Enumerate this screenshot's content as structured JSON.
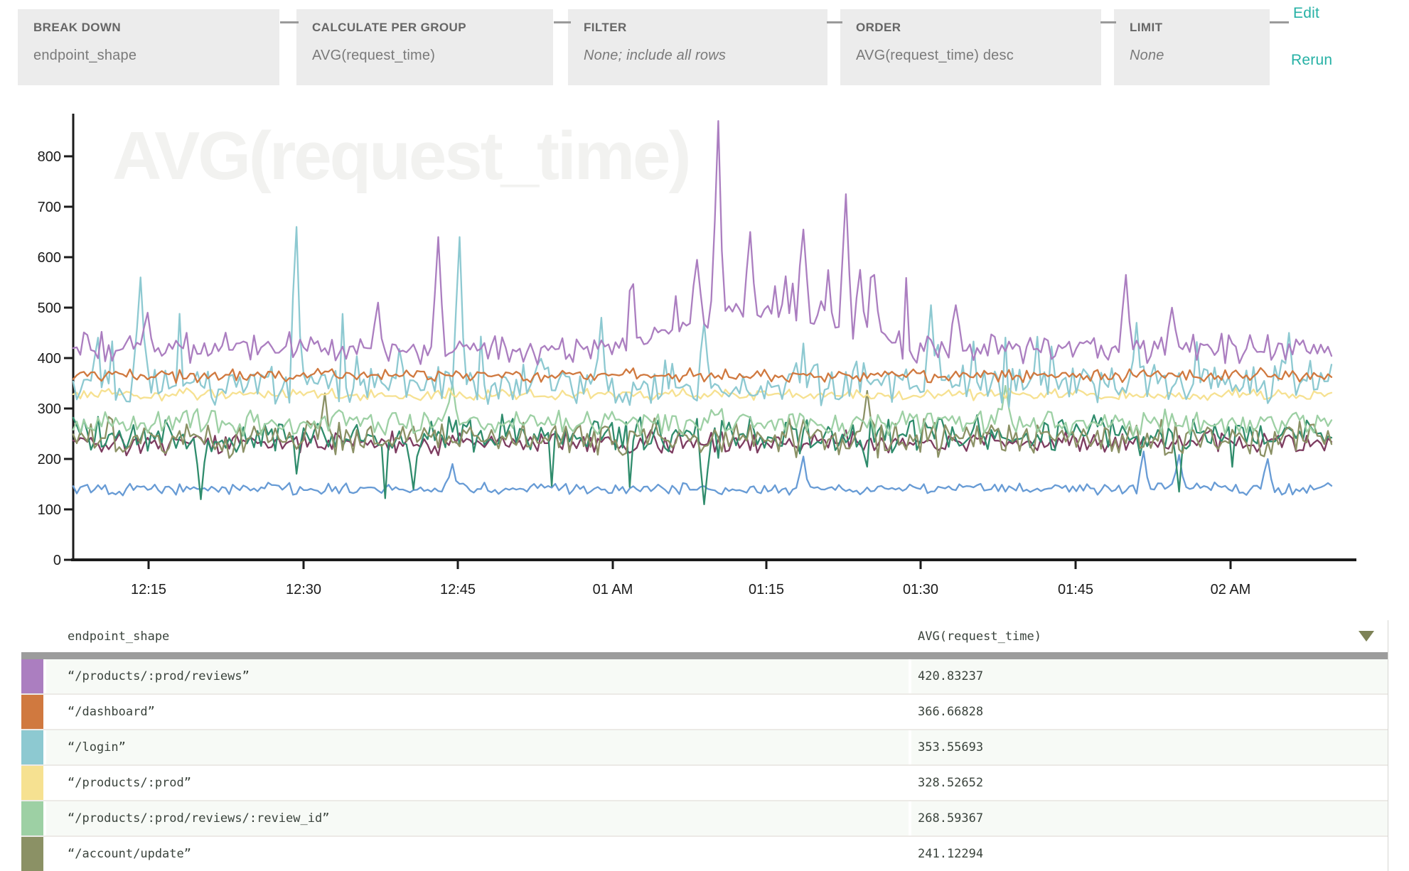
{
  "query_builder": {
    "clauses": [
      {
        "label": "BREAK DOWN",
        "value": "endpoint_shape"
      },
      {
        "label": "CALCULATE PER GROUP",
        "value": "AVG(request_time)"
      },
      {
        "label": "FILTER",
        "value": "None; include all rows"
      },
      {
        "label": "ORDER",
        "value": "AVG(request_time) desc"
      },
      {
        "label": "LIMIT",
        "value": "None"
      }
    ],
    "edit_label": "Edit",
    "rerun_label": "Rerun",
    "accent_color": "#26b1a5"
  },
  "chart_data": {
    "type": "line",
    "watermark": "AVG(request_time)",
    "x_ticks": [
      "12:15",
      "12:30",
      "12:45",
      "01 AM",
      "01:15",
      "01:30",
      "01:45",
      "02 AM"
    ],
    "y_ticks": [
      0,
      100,
      200,
      300,
      400,
      500,
      600,
      700,
      800
    ],
    "ylim": [
      0,
      880
    ],
    "grid": false,
    "legend_position": "table-below-chart",
    "series": [
      {
        "name": "“/products/:prod/reviews”",
        "color": "#ab7ec0",
        "avg": 420.83237,
        "base": 420,
        "noise": 34,
        "elevated_window": [
          0.43,
          0.67
        ],
        "elevated_boost": 70,
        "spikes": [
          [
            0.513,
            870
          ],
          [
            0.615,
            725
          ],
          [
            0.581,
            655
          ],
          [
            0.538,
            650
          ],
          [
            0.495,
            595
          ],
          [
            0.624,
            575
          ],
          [
            0.638,
            565
          ],
          [
            0.838,
            565
          ],
          [
            0.29,
            640
          ],
          [
            0.242,
            510
          ],
          [
            0.702,
            505
          ],
          [
            0.06,
            490
          ],
          [
            0.874,
            500
          ]
        ]
      },
      {
        "name": "“/dashboard”",
        "color": "#d0793f",
        "avg": 366.66828,
        "base": 366,
        "noise": 16,
        "spikes": []
      },
      {
        "name": "“/login”",
        "color": "#8dc9d1",
        "avg": 353.55693,
        "base": 346,
        "noise": 46,
        "bump_p": 0.07,
        "bump_h": 115,
        "spikes": [
          [
            0.177,
            660
          ],
          [
            0.306,
            640
          ],
          [
            0.053,
            560
          ],
          [
            0.42,
            480
          ],
          [
            0.5,
            470
          ],
          [
            0.681,
            505
          ],
          [
            0.845,
            470
          ],
          [
            0.965,
            450
          ]
        ]
      },
      {
        "name": "“/products/:prod”",
        "color": "#f6e191",
        "avg": 328.52652,
        "base": 328,
        "noise": 13,
        "spikes": []
      },
      {
        "name": "“/products/:prod/reviews/:review_id”",
        "color": "#9dd0a4",
        "avg": 268.59367,
        "base": 272,
        "noise": 30,
        "spikes": [
          [
            0.3,
            350
          ],
          [
            0.74,
            345
          ]
        ]
      },
      {
        "name": "“/account/update”",
        "color": "#8b9165",
        "avg": 241.12294,
        "base": 241,
        "noise": 44,
        "spikes": [
          [
            0.2,
            330
          ],
          [
            0.63,
            335
          ]
        ]
      },
      {
        "name": "",
        "color": "#2f8c6c",
        "avg": null,
        "base": 250,
        "noise": 42,
        "dip_p": 0.05,
        "dip_h": 110,
        "spikes": [
          [
            0.1,
            120
          ],
          [
            0.27,
            140
          ],
          [
            0.5,
            110
          ],
          [
            0.88,
            135
          ]
        ]
      },
      {
        "name": "",
        "color": "#7d3c60",
        "avg": null,
        "base": 232,
        "noise": 27,
        "spikes": []
      },
      {
        "name": "",
        "color": "#679bd5",
        "avg": null,
        "base": 141,
        "noise": 15,
        "spikes": [
          [
            0.3,
            190
          ],
          [
            0.58,
            205
          ],
          [
            0.85,
            215
          ],
          [
            0.88,
            208
          ],
          [
            0.95,
            200
          ]
        ]
      }
    ]
  },
  "table": {
    "columns": [
      {
        "label": "endpoint_shape"
      },
      {
        "label": "AVG(request_time)",
        "sort": "desc"
      }
    ],
    "rows": [
      {
        "color": "#ab7ec0",
        "endpoint_shape": "“/products/:prod/reviews”",
        "avg": "420.83237"
      },
      {
        "color": "#d0793f",
        "endpoint_shape": "“/dashboard”",
        "avg": "366.66828"
      },
      {
        "color": "#8dc9d1",
        "endpoint_shape": "“/login”",
        "avg": "353.55693"
      },
      {
        "color": "#f6e191",
        "endpoint_shape": "“/products/:prod”",
        "avg": "328.52652"
      },
      {
        "color": "#9dd0a4",
        "endpoint_shape": "“/products/:prod/reviews/:review_id”",
        "avg": "268.59367"
      },
      {
        "color": "#8b9165",
        "endpoint_shape": "“/account/update”",
        "avg": "241.12294"
      }
    ]
  }
}
